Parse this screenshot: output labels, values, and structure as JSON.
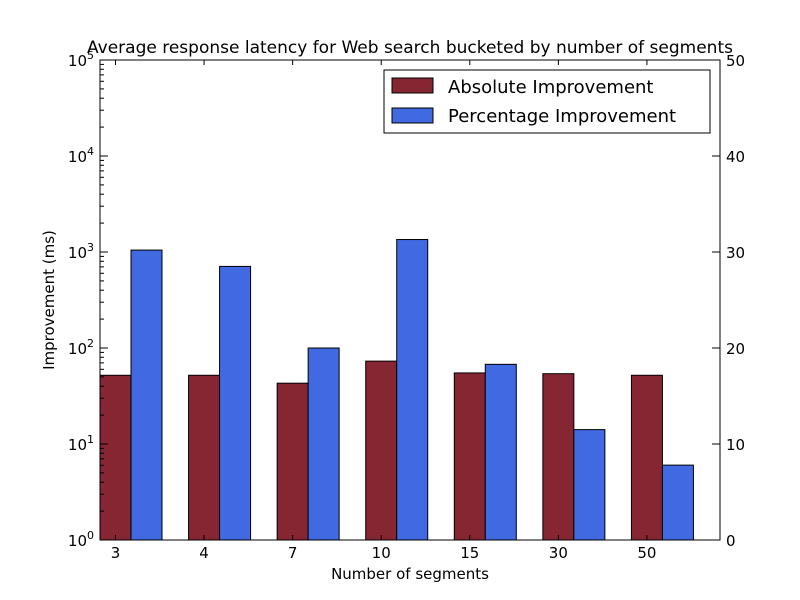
{
  "chart_data": {
    "type": "bar",
    "title": "Average response latency for Web search bucketed by number of segments",
    "xlabel": "Number of segments",
    "ylabel": "Improvement (ms)",
    "y2label": "",
    "categories": [
      "3",
      "4",
      "7",
      "10",
      "15",
      "30",
      "50"
    ],
    "series": [
      {
        "name": "Absolute Improvement",
        "axis": "left",
        "scale": "log",
        "color": "#862633",
        "values": [
          52,
          52,
          43,
          73,
          55,
          54,
          52
        ]
      },
      {
        "name": "Percentage Improvement",
        "axis": "right",
        "scale": "linear",
        "color": "#4169e1",
        "values": [
          30.2,
          28.5,
          20.0,
          31.3,
          18.3,
          11.5,
          7.8
        ]
      }
    ],
    "yticks": [
      {
        "base": "10",
        "exp": "0"
      },
      {
        "base": "10",
        "exp": "1"
      },
      {
        "base": "10",
        "exp": "2"
      },
      {
        "base": "10",
        "exp": "3"
      },
      {
        "base": "10",
        "exp": "4"
      },
      {
        "base": "10",
        "exp": "5"
      }
    ],
    "ylim": [
      1,
      100000
    ],
    "y2ticks": [
      "0",
      "10",
      "20",
      "30",
      "40",
      "50"
    ],
    "y2lim": [
      0,
      50
    ],
    "legend": "top-right",
    "grid": false
  }
}
